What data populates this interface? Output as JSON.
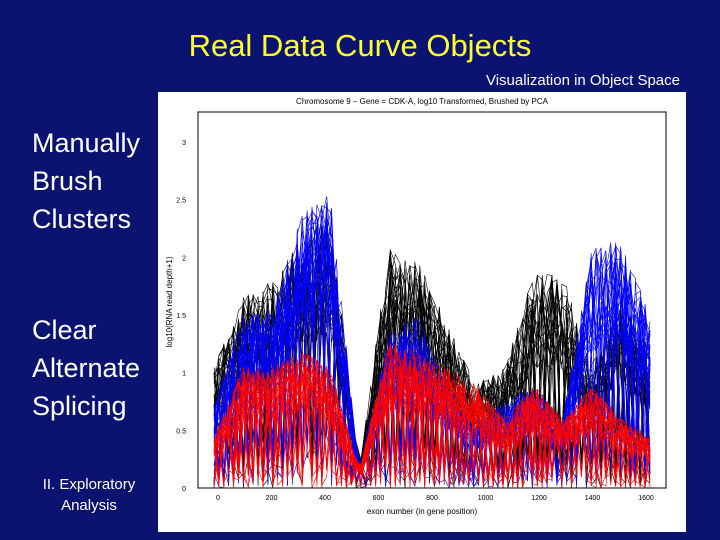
{
  "slide": {
    "title": "Real Data Curve Objects",
    "subtitle": "Visualization in Object Space",
    "left_text_1": [
      "Manually",
      "Brush",
      "Clusters"
    ],
    "left_text_2": [
      "Clear",
      "Alternate",
      "Splicing"
    ],
    "footer": [
      "II. Exploratory",
      "Analysis"
    ]
  },
  "plot": {
    "title": "Chromosome 9 – Gene = CDK-A, log10 Transformed, Brushed by PCA",
    "ylabel": "log10(RNA read depth+1)",
    "xlabel": "exon number (in gene position)",
    "yticks": [
      "0",
      "0.5",
      "1",
      "1.5",
      "2",
      "2.5",
      "3"
    ],
    "xticks": [
      "0",
      "200",
      "400",
      "600",
      "800",
      "1000",
      "1200",
      "1400",
      "1600"
    ],
    "colors": {
      "black": "#000000",
      "blue": "#0000ff",
      "red": "#ff0000"
    }
  }
}
